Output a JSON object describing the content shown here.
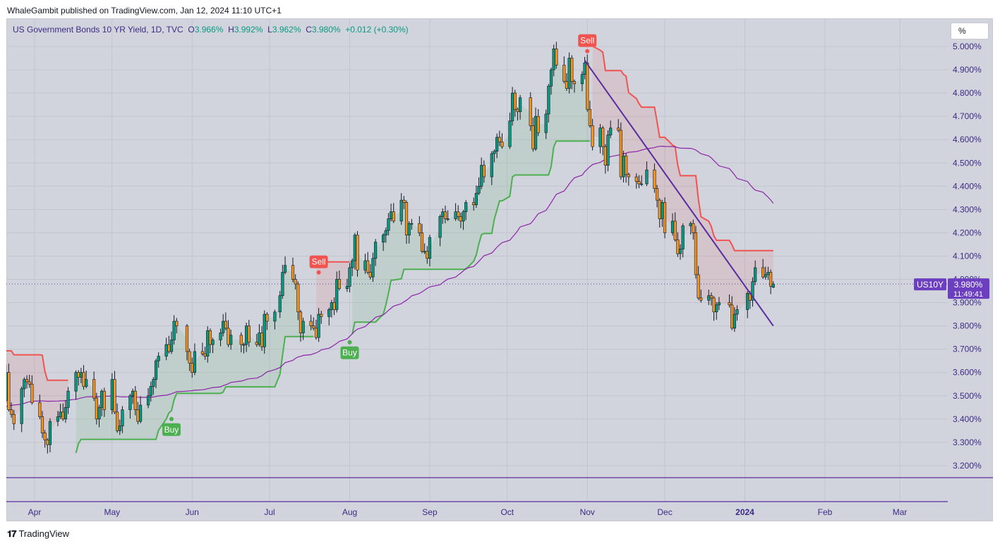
{
  "header": {
    "text": "WhaleGambit published on TradingView.com, Jan 12, 2024 11:10 UTC+1"
  },
  "legend": {
    "title": "US Government Bonds 10 YR Yield, 1D, TVC",
    "o_label": "O",
    "o": "3.966%",
    "h_label": "H",
    "h": "3.992%",
    "l_label": "L",
    "l": "3.962%",
    "c_label": "C",
    "c": "3.980%",
    "change": "+0.012 (+0.30%)"
  },
  "unit_button": "%",
  "price_tag": {
    "symbol": "US10Y",
    "price": "3.980%",
    "countdown": "11:49:41"
  },
  "footer": {
    "brand": "TradingView"
  },
  "colors": {
    "up": "#089981",
    "down": "#f7941d",
    "sell": "#f05350",
    "buy": "#4caf50",
    "ma": "#8e24aa",
    "trendline": "#5b2c9f",
    "background": "#d1d4dc"
  },
  "chart_data": {
    "type": "candlestick",
    "title": "US Government Bonds 10 YR Yield, 1D, TVC",
    "y_unit": "%",
    "ylim": [
      3.13,
      5.05
    ],
    "yticks": [
      3.2,
      3.3,
      3.4,
      3.5,
      3.6,
      3.7,
      3.8,
      3.9,
      4.0,
      4.1,
      4.2,
      4.3,
      4.4,
      4.5,
      4.6,
      4.7,
      4.8,
      4.9,
      5.0
    ],
    "ytick_labels": [
      "3.200%",
      "3.300%",
      "3.400%",
      "3.500%",
      "3.600%",
      "3.700%",
      "3.800%",
      "3.900%",
      "4.000%",
      "4.100%",
      "4.200%",
      "4.300%",
      "4.400%",
      "4.500%",
      "4.600%",
      "4.700%",
      "4.800%",
      "4.900%",
      "5.000%"
    ],
    "xaxis_labels": [
      "Apr",
      "May",
      "Jun",
      "Jul",
      "Aug",
      "Sep",
      "Oct",
      "Nov",
      "Dec",
      "2024",
      "Feb",
      "Mar"
    ],
    "xaxis_dates": [
      "2023-04-01",
      "2023-05-01",
      "2023-06-01",
      "2023-07-01",
      "2023-08-01",
      "2023-09-01",
      "2023-10-01",
      "2023-11-01",
      "2023-12-01",
      "2024-01-01",
      "2024-02-01",
      "2024-03-01"
    ],
    "last_close": 3.98,
    "closes": [
      [
        "2023-03-20",
        3.48
      ],
      [
        "2023-03-21",
        3.6
      ],
      [
        "2023-03-22",
        3.44
      ],
      [
        "2023-03-23",
        3.42
      ],
      [
        "2023-03-24",
        3.38
      ],
      [
        "2023-03-27",
        3.53
      ],
      [
        "2023-03-28",
        3.57
      ],
      [
        "2023-03-29",
        3.56
      ],
      [
        "2023-03-30",
        3.55
      ],
      [
        "2023-03-31",
        3.47
      ],
      [
        "2023-04-03",
        3.41
      ],
      [
        "2023-04-04",
        3.34
      ],
      [
        "2023-04-05",
        3.31
      ],
      [
        "2023-04-06",
        3.29
      ],
      [
        "2023-04-07",
        3.39
      ],
      [
        "2023-04-10",
        3.41
      ],
      [
        "2023-04-11",
        3.43
      ],
      [
        "2023-04-12",
        3.4
      ],
      [
        "2023-04-13",
        3.45
      ],
      [
        "2023-04-14",
        3.52
      ],
      [
        "2023-04-17",
        3.6
      ],
      [
        "2023-04-18",
        3.58
      ],
      [
        "2023-04-19",
        3.6
      ],
      [
        "2023-04-20",
        3.54
      ],
      [
        "2023-04-21",
        3.57
      ],
      [
        "2023-04-24",
        3.49
      ],
      [
        "2023-04-25",
        3.4
      ],
      [
        "2023-04-26",
        3.45
      ],
      [
        "2023-04-27",
        3.52
      ],
      [
        "2023-04-28",
        3.44
      ],
      [
        "2023-05-01",
        3.57
      ],
      [
        "2023-05-02",
        3.43
      ],
      [
        "2023-05-03",
        3.35
      ],
      [
        "2023-05-04",
        3.37
      ],
      [
        "2023-05-05",
        3.44
      ],
      [
        "2023-05-08",
        3.5
      ],
      [
        "2023-05-09",
        3.52
      ],
      [
        "2023-05-10",
        3.44
      ],
      [
        "2023-05-11",
        3.39
      ],
      [
        "2023-05-12",
        3.46
      ],
      [
        "2023-05-15",
        3.5
      ],
      [
        "2023-05-16",
        3.54
      ],
      [
        "2023-05-17",
        3.57
      ],
      [
        "2023-05-18",
        3.65
      ],
      [
        "2023-05-19",
        3.67
      ],
      [
        "2023-05-22",
        3.72
      ],
      [
        "2023-05-23",
        3.69
      ],
      [
        "2023-05-24",
        3.74
      ],
      [
        "2023-05-25",
        3.82
      ],
      [
        "2023-05-26",
        3.8
      ],
      [
        "2023-05-30",
        3.69
      ],
      [
        "2023-05-31",
        3.64
      ],
      [
        "2023-06-01",
        3.6
      ],
      [
        "2023-06-02",
        3.69
      ],
      [
        "2023-06-05",
        3.68
      ],
      [
        "2023-06-06",
        3.67
      ],
      [
        "2023-06-07",
        3.78
      ],
      [
        "2023-06-08",
        3.72
      ],
      [
        "2023-06-09",
        3.74
      ],
      [
        "2023-06-12",
        3.77
      ],
      [
        "2023-06-13",
        3.82
      ],
      [
        "2023-06-14",
        3.79
      ],
      [
        "2023-06-15",
        3.72
      ],
      [
        "2023-06-16",
        3.76
      ],
      [
        "2023-06-20",
        3.72
      ],
      [
        "2023-06-21",
        3.72
      ],
      [
        "2023-06-22",
        3.8
      ],
      [
        "2023-06-23",
        3.73
      ],
      [
        "2023-06-26",
        3.72
      ],
      [
        "2023-06-27",
        3.77
      ],
      [
        "2023-06-28",
        3.71
      ],
      [
        "2023-06-29",
        3.85
      ],
      [
        "2023-06-30",
        3.82
      ],
      [
        "2023-07-03",
        3.86
      ],
      [
        "2023-07-05",
        3.93
      ],
      [
        "2023-07-06",
        4.03
      ],
      [
        "2023-07-07",
        4.06
      ],
      [
        "2023-07-10",
        4.0
      ],
      [
        "2023-07-11",
        3.98
      ],
      [
        "2023-07-12",
        3.86
      ],
      [
        "2023-07-13",
        3.77
      ],
      [
        "2023-07-14",
        3.82
      ],
      [
        "2023-07-17",
        3.8
      ],
      [
        "2023-07-18",
        3.79
      ],
      [
        "2023-07-19",
        3.75
      ],
      [
        "2023-07-20",
        3.85
      ],
      [
        "2023-07-21",
        3.84
      ],
      [
        "2023-07-24",
        3.87
      ],
      [
        "2023-07-25",
        3.9
      ],
      [
        "2023-07-26",
        3.87
      ],
      [
        "2023-07-27",
        4.0
      ],
      [
        "2023-07-28",
        3.96
      ],
      [
        "2023-07-31",
        3.97
      ],
      [
        "2023-08-01",
        4.05
      ],
      [
        "2023-08-02",
        4.08
      ],
      [
        "2023-08-03",
        4.19
      ],
      [
        "2023-08-04",
        4.04
      ],
      [
        "2023-08-07",
        4.08
      ],
      [
        "2023-08-08",
        4.03
      ],
      [
        "2023-08-09",
        4.01
      ],
      [
        "2023-08-10",
        4.09
      ],
      [
        "2023-08-11",
        4.16
      ],
      [
        "2023-08-14",
        4.19
      ],
      [
        "2023-08-15",
        4.21
      ],
      [
        "2023-08-16",
        4.26
      ],
      [
        "2023-08-17",
        4.29
      ],
      [
        "2023-08-18",
        4.25
      ],
      [
        "2023-08-21",
        4.34
      ],
      [
        "2023-08-22",
        4.33
      ],
      [
        "2023-08-23",
        4.19
      ],
      [
        "2023-08-24",
        4.24
      ],
      [
        "2023-08-25",
        4.24
      ],
      [
        "2023-08-28",
        4.2
      ],
      [
        "2023-08-29",
        4.12
      ],
      [
        "2023-08-30",
        4.12
      ],
      [
        "2023-08-31",
        4.09
      ],
      [
        "2023-09-01",
        4.18
      ],
      [
        "2023-09-05",
        4.27
      ],
      [
        "2023-09-06",
        4.29
      ],
      [
        "2023-09-07",
        4.26
      ],
      [
        "2023-09-08",
        4.26
      ],
      [
        "2023-09-11",
        4.29
      ],
      [
        "2023-09-12",
        4.27
      ],
      [
        "2023-09-13",
        4.25
      ],
      [
        "2023-09-14",
        4.29
      ],
      [
        "2023-09-15",
        4.33
      ],
      [
        "2023-09-18",
        4.32
      ],
      [
        "2023-09-19",
        4.37
      ],
      [
        "2023-09-20",
        4.4
      ],
      [
        "2023-09-21",
        4.49
      ],
      [
        "2023-09-22",
        4.44
      ],
      [
        "2023-09-25",
        4.54
      ],
      [
        "2023-09-26",
        4.55
      ],
      [
        "2023-09-27",
        4.61
      ],
      [
        "2023-09-28",
        4.59
      ],
      [
        "2023-09-29",
        4.57
      ],
      [
        "2023-10-02",
        4.68
      ],
      [
        "2023-10-03",
        4.8
      ],
      [
        "2023-10-04",
        4.73
      ],
      [
        "2023-10-05",
        4.72
      ],
      [
        "2023-10-06",
        4.78
      ],
      [
        "2023-10-10",
        4.66
      ],
      [
        "2023-10-11",
        4.56
      ],
      [
        "2023-10-12",
        4.7
      ],
      [
        "2023-10-13",
        4.63
      ],
      [
        "2023-10-16",
        4.71
      ],
      [
        "2023-10-17",
        4.83
      ],
      [
        "2023-10-18",
        4.9
      ],
      [
        "2023-10-19",
        4.99
      ],
      [
        "2023-10-20",
        4.92
      ],
      [
        "2023-10-23",
        4.85
      ],
      [
        "2023-10-24",
        4.82
      ],
      [
        "2023-10-25",
        4.95
      ],
      [
        "2023-10-26",
        4.85
      ],
      [
        "2023-10-27",
        4.84
      ],
      [
        "2023-10-30",
        4.88
      ],
      [
        "2023-10-31",
        4.93
      ],
      [
        "2023-11-01",
        4.73
      ],
      [
        "2023-11-02",
        4.66
      ],
      [
        "2023-11-03",
        4.57
      ],
      [
        "2023-11-06",
        4.65
      ],
      [
        "2023-11-07",
        4.57
      ],
      [
        "2023-11-08",
        4.49
      ],
      [
        "2023-11-09",
        4.62
      ],
      [
        "2023-11-10",
        4.65
      ],
      [
        "2023-11-13",
        4.64
      ],
      [
        "2023-11-14",
        4.44
      ],
      [
        "2023-11-15",
        4.53
      ],
      [
        "2023-11-16",
        4.45
      ],
      [
        "2023-11-17",
        4.44
      ],
      [
        "2023-11-20",
        4.42
      ],
      [
        "2023-11-21",
        4.41
      ],
      [
        "2023-11-22",
        4.41
      ],
      [
        "2023-11-24",
        4.47
      ],
      [
        "2023-11-27",
        4.39
      ],
      [
        "2023-11-28",
        4.34
      ],
      [
        "2023-11-29",
        4.26
      ],
      [
        "2023-11-30",
        4.33
      ],
      [
        "2023-12-01",
        4.2
      ],
      [
        "2023-12-04",
        4.25
      ],
      [
        "2023-12-05",
        4.17
      ],
      [
        "2023-12-06",
        4.11
      ],
      [
        "2023-12-07",
        4.13
      ],
      [
        "2023-12-08",
        4.23
      ],
      [
        "2023-12-11",
        4.24
      ],
      [
        "2023-12-12",
        4.2
      ],
      [
        "2023-12-13",
        4.02
      ],
      [
        "2023-12-14",
        3.92
      ],
      [
        "2023-12-15",
        3.91
      ],
      [
        "2023-12-18",
        3.93
      ],
      [
        "2023-12-19",
        3.92
      ],
      [
        "2023-12-20",
        3.86
      ],
      [
        "2023-12-21",
        3.89
      ],
      [
        "2023-12-22",
        3.9
      ],
      [
        "2023-12-26",
        3.89
      ],
      [
        "2023-12-27",
        3.79
      ],
      [
        "2023-12-28",
        3.85
      ],
      [
        "2023-12-29",
        3.87
      ],
      [
        "2024-01-02",
        3.94
      ],
      [
        "2024-01-03",
        3.91
      ],
      [
        "2024-01-04",
        3.99
      ],
      [
        "2024-01-05",
        4.05
      ],
      [
        "2024-01-08",
        4.01
      ],
      [
        "2024-01-09",
        4.02
      ],
      [
        "2024-01-10",
        4.03
      ],
      [
        "2024-01-11",
        3.97
      ],
      [
        "2024-01-12",
        3.98
      ]
    ],
    "signals": [
      {
        "label": "Buy",
        "date": "2023-05-24",
        "value": 3.4
      },
      {
        "label": "Sell",
        "date": "2023-07-20",
        "value": 4.03
      },
      {
        "label": "Buy",
        "date": "2023-08-01",
        "value": 3.73
      },
      {
        "label": "Sell",
        "date": "2023-11-01",
        "value": 4.98
      }
    ],
    "trend_line": {
      "start": [
        "2023-10-31",
        4.94
      ],
      "end": [
        "2024-01-12",
        3.8
      ]
    },
    "indicators": [
      "supertrend",
      "moving average"
    ]
  }
}
